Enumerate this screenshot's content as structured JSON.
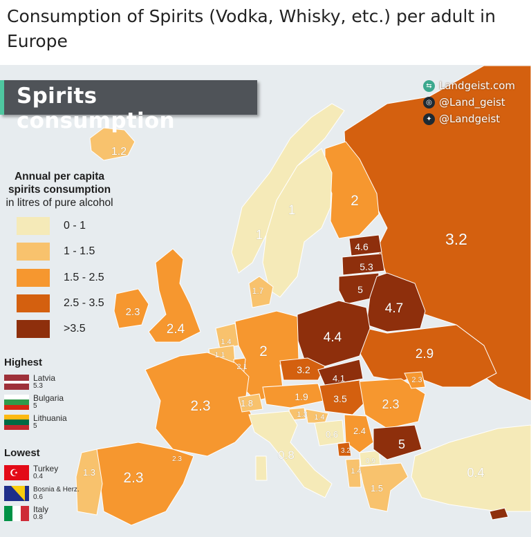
{
  "page_title": "Consumption of Spirits (Vodka, Whisky, etc.) per adult in Europe",
  "banner_title": "Spirits consumption",
  "social": [
    {
      "icon": "globe-icon",
      "text": "Landgeist.com"
    },
    {
      "icon": "instagram-icon",
      "text": "@Land_geist"
    },
    {
      "icon": "twitter-icon",
      "text": "@Landgeist"
    }
  ],
  "legend": {
    "title_line1": "Annual per capita",
    "title_line2": "spirits consumption",
    "title_line3": "in litres of pure alcohol",
    "bins": [
      {
        "label": "0 - 1",
        "color": "#f5eab8"
      },
      {
        "label": "1 - 1.5",
        "color": "#f8c26d"
      },
      {
        "label": "1.5 - 2.5",
        "color": "#f6972f"
      },
      {
        "label": "2.5 - 3.5",
        "color": "#d4600f"
      },
      {
        "label": ">3.5",
        "color": "#8e2f0c"
      }
    ]
  },
  "highest": {
    "title": "Highest",
    "items": [
      {
        "name": "Latvia",
        "value": "5.3"
      },
      {
        "name": "Bulgaria",
        "value": "5"
      },
      {
        "name": "Lithuania",
        "value": "5"
      }
    ]
  },
  "lowest": {
    "title": "Lowest",
    "items": [
      {
        "name": "Turkey",
        "value": "0.4"
      },
      {
        "name": "Bosnia & Herz.",
        "value": "0.6"
      },
      {
        "name": "Italy",
        "value": "0.8"
      }
    ]
  },
  "map_values": {
    "iceland": "1.2",
    "norway": "1",
    "sweden": "1",
    "finland": "2",
    "russia": "3.2",
    "estonia": "4.6",
    "latvia": "5.3",
    "lithuania": "5",
    "belarus": "4.7",
    "poland": "4.4",
    "ukraine": "2.9",
    "ireland": "2.3",
    "uk": "2.4",
    "denmark": "1.7",
    "germany": "2",
    "netherlands": "1.4",
    "belgium": "1.1",
    "luxembourg": "2.1",
    "france": "2.3",
    "switzerland": "1.8",
    "czechia": "3.2",
    "slovakia": "4.1",
    "austria": "1.9",
    "hungary": "3.5",
    "romania": "2.3",
    "moldova": "2.3",
    "slovenia": "1.3",
    "croatia": "1.4",
    "bosnia": "0.6",
    "serbia": "2.4",
    "bulgaria": "5",
    "montenegro": "3.2",
    "macedonia": "0.9",
    "albania": "1.4",
    "greece": "1.5",
    "italy": "0.8",
    "spain": "2.3",
    "portugal": "1.3",
    "andorra": "2.3",
    "turkey": "0.4"
  }
}
